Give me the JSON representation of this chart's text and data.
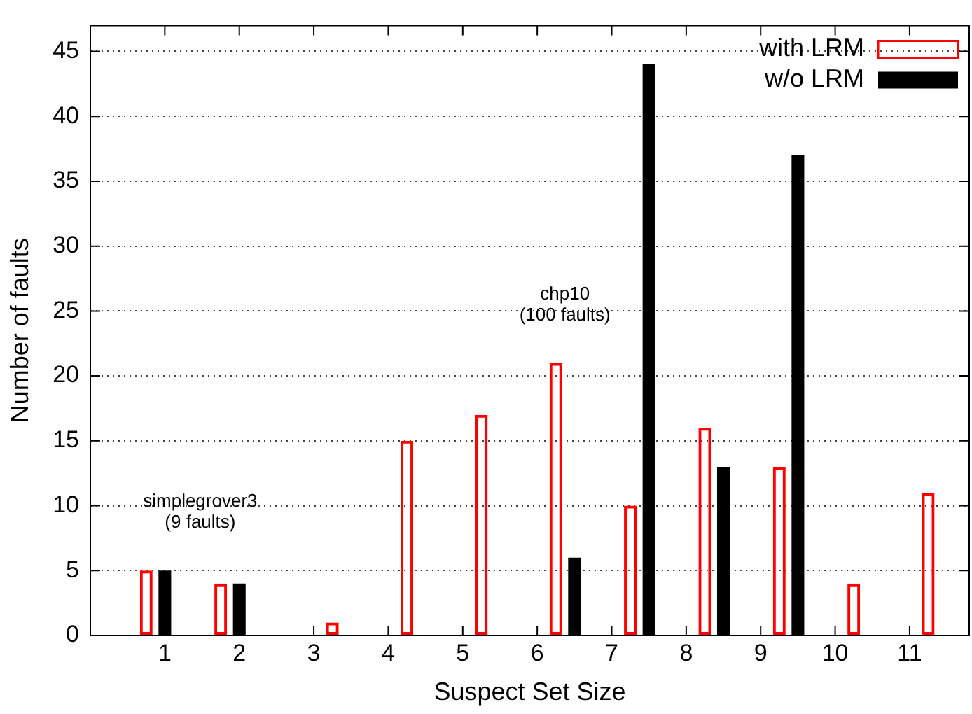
{
  "chart_data": {
    "type": "bar",
    "xlabel": "Suspect Set Size",
    "ylabel": "Number of faults",
    "xlim": [
      0,
      11.8
    ],
    "xticks": [
      1,
      2,
      3,
      4,
      5,
      6,
      7,
      8,
      9,
      10,
      11
    ],
    "ylim": [
      0,
      47
    ],
    "yticks": [
      0,
      5,
      10,
      15,
      20,
      25,
      30,
      35,
      40,
      45
    ],
    "series": [
      {
        "name": "with LRM",
        "color": "#ff0000",
        "x": [
          0.75,
          1.75,
          2.75,
          3.75,
          4.75,
          5.75,
          6.75,
          7.75,
          8.75,
          9.75,
          10.75
        ],
        "values": [
          5,
          4,
          0,
          0,
          0,
          0,
          0,
          0,
          0,
          0,
          0
        ]
      },
      {
        "name": "w/o LRM",
        "color": "#000000",
        "x": [
          1,
          2,
          3,
          4,
          5,
          6,
          7,
          8,
          9,
          10,
          11
        ],
        "values": [
          5,
          4,
          0,
          0,
          0,
          0,
          0,
          0,
          0,
          0,
          0
        ]
      },
      {
        "color": "#ff0000",
        "x": [
          1.25,
          2.25,
          3.25,
          4.25,
          5.25,
          6.25,
          7.25,
          8.25,
          9.25,
          10.25,
          11.25
        ],
        "values": [
          0,
          0,
          1,
          15,
          17,
          21,
          10,
          16,
          13,
          4,
          11
        ]
      },
      {
        "color": "#000000",
        "x": [
          1.5,
          2.5,
          3.5,
          4.5,
          5.5,
          6.5,
          7.5,
          8.5,
          9.5,
          10.5,
          11.5
        ],
        "values": [
          0,
          0,
          0,
          0,
          0,
          6,
          44,
          13,
          37,
          0,
          0
        ]
      }
    ],
    "annotations": [
      "simplegrover3\n(9 faults)",
      "chp10\n(100 faults)"
    ],
    "grid": "y",
    "legend": "top right"
  }
}
